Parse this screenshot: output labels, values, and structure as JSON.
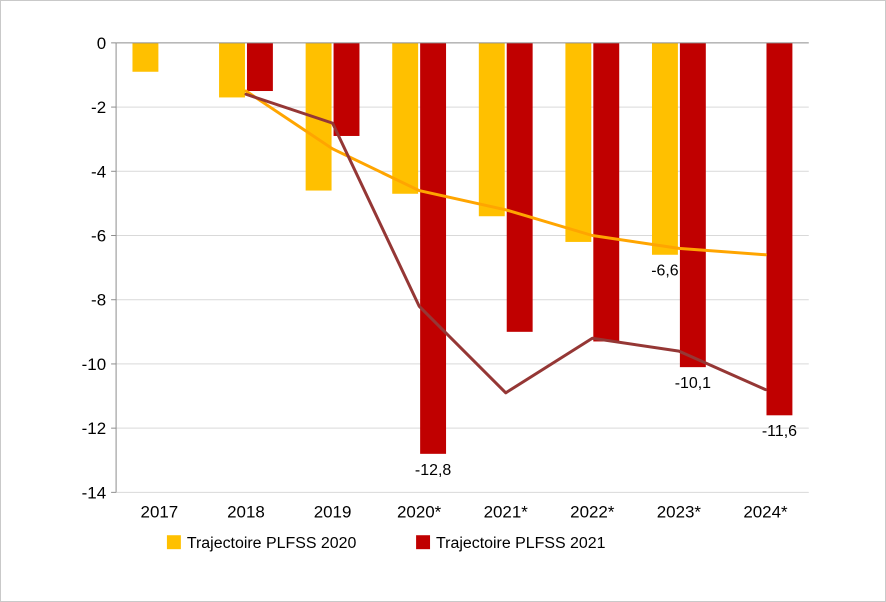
{
  "chart_data": {
    "type": "bar",
    "categories": [
      "2017",
      "2018",
      "2019",
      "2020*",
      "2021*",
      "2022*",
      "2023*",
      "2024*"
    ],
    "bar_series": [
      {
        "name": "Trajectoire PLFSS 2020",
        "color": "#FFC000",
        "values": [
          -0.9,
          -1.7,
          -4.6,
          -4.7,
          -5.4,
          -6.2,
          -6.6,
          null
        ]
      },
      {
        "name": "Trajectoire PLFSS 2021",
        "color": "#C00000",
        "values": [
          null,
          -1.5,
          -2.9,
          -12.8,
          -9.0,
          -9.3,
          -10.1,
          -11.6
        ]
      }
    ],
    "line_series": [
      {
        "name": "orange-trend-line",
        "color": "#FFA500",
        "values": [
          null,
          -1.5,
          -3.3,
          -4.6,
          -5.2,
          -6.0,
          -6.4,
          -6.6
        ]
      },
      {
        "name": "dark-red-trend-line",
        "color": "#953735",
        "values": [
          null,
          -1.6,
          -2.5,
          -8.2,
          -10.9,
          -9.2,
          -9.6,
          -10.8
        ]
      }
    ],
    "data_labels": [
      {
        "series_index": 1,
        "category_index": 3,
        "text": "-12,8"
      },
      {
        "series_index": 0,
        "category_index": 6,
        "text": "-6,6"
      },
      {
        "series_index": 1,
        "category_index": 6,
        "text": "-10,1"
      },
      {
        "series_index": 1,
        "category_index": 7,
        "text": "-11,6"
      }
    ],
    "y_axis": {
      "min": -14,
      "max": 0,
      "tick_step": 2,
      "tick_labels": [
        "0",
        "-2",
        "-4",
        "-6",
        "-8",
        "-10",
        "-12",
        "-14"
      ]
    },
    "grid": true,
    "legend": {
      "position": "bottom",
      "items": [
        {
          "label": "Trajectoire PLFSS 2020",
          "color": "#FFC000"
        },
        {
          "label": "Trajectoire PLFSS 2021",
          "color": "#C00000"
        }
      ]
    }
  }
}
